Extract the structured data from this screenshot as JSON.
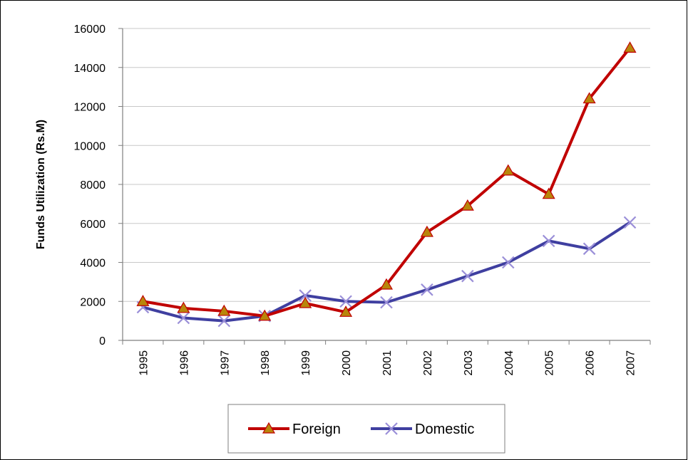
{
  "chart_data": {
    "type": "line",
    "title": "",
    "xlabel": "",
    "ylabel": "Funds Utilization (Rs.M)",
    "ylim": [
      0,
      16000
    ],
    "yticks": [
      0,
      2000,
      4000,
      6000,
      8000,
      10000,
      12000,
      14000,
      16000
    ],
    "categories": [
      "1995",
      "1996",
      "1997",
      "1998",
      "1999",
      "2000",
      "2001",
      "2002",
      "2003",
      "2004",
      "2005",
      "2006",
      "2007"
    ],
    "grid": true,
    "legend_position": "bottom",
    "series": [
      {
        "name": "Foreign",
        "color": "#c00000",
        "marker": "triangle",
        "marker_color": "#b8860b",
        "values": [
          2000,
          1650,
          1500,
          1250,
          1900,
          1450,
          2850,
          5550,
          6900,
          8700,
          7500,
          12400,
          15000
        ]
      },
      {
        "name": "Domestic",
        "color": "#3f3fa0",
        "marker": "x",
        "marker_color": "#9a8fd8",
        "values": [
          1700,
          1150,
          1000,
          1250,
          2300,
          2000,
          1950,
          2600,
          3300,
          4000,
          5100,
          4700,
          6050
        ]
      }
    ]
  }
}
